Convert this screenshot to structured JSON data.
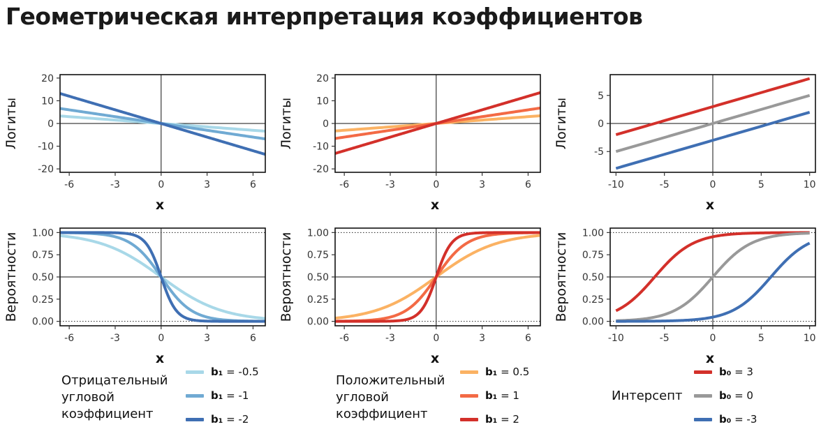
{
  "title": "Геометрическая интерпретация коэффициентов",
  "chart_data": [
    {
      "type": "line",
      "panel": "negative-slope-logits",
      "ylabel": "Логиты",
      "xlabel": "x",
      "xlim": [
        -6.6,
        6.8
      ],
      "ylim": [
        -21.5,
        21.5
      ],
      "xticks": [
        -6,
        -3,
        0,
        3,
        6
      ],
      "xtick_labels": [
        "-6",
        "-3",
        "0",
        "3",
        "6"
      ],
      "yticks": [
        -20,
        -10,
        0,
        10,
        20
      ],
      "ytick_labels": [
        "-20",
        "-10",
        "0",
        "10",
        "20"
      ],
      "kind": "logit",
      "x_range": [
        -6.6,
        6.8
      ],
      "series": [
        {
          "name": "b1 = -0.5",
          "b0": 0,
          "b1": -0.5,
          "color": "#a8d8e8"
        },
        {
          "name": "b1 = -1",
          "b0": 0,
          "b1": -1,
          "color": "#70aad3"
        },
        {
          "name": "b1 = -2",
          "b0": 0,
          "b1": -2,
          "color": "#3f6fb3"
        }
      ]
    },
    {
      "type": "line",
      "panel": "positive-slope-logits",
      "ylabel": "Логиты",
      "xlabel": "x",
      "xlim": [
        -6.6,
        6.8
      ],
      "ylim": [
        -21.5,
        21.5
      ],
      "xticks": [
        -6,
        -3,
        0,
        3,
        6
      ],
      "xtick_labels": [
        "-6",
        "-3",
        "0",
        "3",
        "6"
      ],
      "yticks": [
        -20,
        -10,
        0,
        10,
        20
      ],
      "ytick_labels": [
        "-20",
        "-10",
        "0",
        "10",
        "20"
      ],
      "kind": "logit",
      "x_range": [
        -6.6,
        6.8
      ],
      "series": [
        {
          "name": "b1 = 0.5",
          "b0": 0,
          "b1": 0.5,
          "color": "#fbb263"
        },
        {
          "name": "b1 = 1",
          "b0": 0,
          "b1": 1,
          "color": "#f36a45"
        },
        {
          "name": "b1 = 2",
          "b0": 0,
          "b1": 2,
          "color": "#d3302a"
        }
      ]
    },
    {
      "type": "line",
      "panel": "intercept-logits",
      "ylabel": "Логиты",
      "xlabel": "x",
      "xlim": [
        -10.6,
        10.6
      ],
      "ylim": [
        -8.7,
        8.7
      ],
      "xticks": [
        -10,
        -5,
        0,
        5,
        10
      ],
      "xtick_labels": [
        "-10",
        "-5",
        "0",
        "5",
        "10"
      ],
      "yticks": [
        -5,
        0,
        5
      ],
      "ytick_labels": [
        "-5",
        "0",
        "5"
      ],
      "kind": "logit",
      "x_range": [
        -10,
        10
      ],
      "series": [
        {
          "name": "b0 = 3",
          "b0": 3,
          "b1": 0.5,
          "color": "#d3302a"
        },
        {
          "name": "b0 = 0",
          "b0": 0,
          "b1": 0.5,
          "color": "#999999"
        },
        {
          "name": "b0 = -3",
          "b0": -3,
          "b1": 0.5,
          "color": "#3f6fb3"
        }
      ]
    },
    {
      "type": "line",
      "panel": "negative-slope-probabilities",
      "ylabel": "Вероятности",
      "xlabel": "x",
      "xlim": [
        -6.6,
        6.8
      ],
      "ylim": [
        -0.05,
        1.05
      ],
      "xticks": [
        -6,
        -3,
        0,
        3,
        6
      ],
      "xtick_labels": [
        "-6",
        "-3",
        "0",
        "3",
        "6"
      ],
      "yticks": [
        0,
        0.25,
        0.5,
        0.75,
        1
      ],
      "ytick_labels": [
        "0.00",
        "0.25",
        "0.50",
        "0.75",
        "1.00"
      ],
      "kind": "prob",
      "x_range": [
        -6.6,
        6.8
      ],
      "series": [
        {
          "name": "b1 = -0.5",
          "b0": 0,
          "b1": -0.5,
          "color": "#a8d8e8"
        },
        {
          "name": "b1 = -1",
          "b0": 0,
          "b1": -1,
          "color": "#70aad3"
        },
        {
          "name": "b1 = -2",
          "b0": 0,
          "b1": -2,
          "color": "#3f6fb3"
        }
      ]
    },
    {
      "type": "line",
      "panel": "positive-slope-probabilities",
      "ylabel": "Вероятности",
      "xlabel": "x",
      "xlim": [
        -6.6,
        6.8
      ],
      "ylim": [
        -0.05,
        1.05
      ],
      "xticks": [
        -6,
        -3,
        0,
        3,
        6
      ],
      "xtick_labels": [
        "-6",
        "-3",
        "0",
        "3",
        "6"
      ],
      "yticks": [
        0,
        0.25,
        0.5,
        0.75,
        1
      ],
      "ytick_labels": [
        "0.00",
        "0.25",
        "0.50",
        "0.75",
        "1.00"
      ],
      "kind": "prob",
      "x_range": [
        -6.6,
        6.8
      ],
      "series": [
        {
          "name": "b1 = 0.5",
          "b0": 0,
          "b1": 0.5,
          "color": "#fbb263"
        },
        {
          "name": "b1 = 1",
          "b0": 0,
          "b1": 1,
          "color": "#f36a45"
        },
        {
          "name": "b1 = 2",
          "b0": 0,
          "b1": 2,
          "color": "#d3302a"
        }
      ]
    },
    {
      "type": "line",
      "panel": "intercept-probabilities",
      "ylabel": "Вероятности",
      "xlabel": "x",
      "xlim": [
        -10.6,
        10.6
      ],
      "ylim": [
        -0.05,
        1.05
      ],
      "xticks": [
        -10,
        -5,
        0,
        5,
        10
      ],
      "xtick_labels": [
        "-10",
        "-5",
        "0",
        "5",
        "10"
      ],
      "yticks": [
        0,
        0.25,
        0.5,
        0.75,
        1
      ],
      "ytick_labels": [
        "0.00",
        "0.25",
        "0.50",
        "0.75",
        "1.00"
      ],
      "kind": "prob",
      "x_range": [
        -10,
        10
      ],
      "series": [
        {
          "name": "b0 = 3",
          "b0": 3,
          "b1": 0.5,
          "color": "#d3302a"
        },
        {
          "name": "b0 = 0",
          "b0": 0,
          "b1": 0.5,
          "color": "#999999"
        },
        {
          "name": "b0 = -3",
          "b0": -3,
          "b1": 0.5,
          "color": "#3f6fb3"
        }
      ]
    }
  ],
  "legends": [
    {
      "title_lines": [
        "Отрицательный",
        "угловой",
        "коэффициент"
      ],
      "items": [
        {
          "symbol": "b₁",
          "value": "= -0.5",
          "color": "#a8d8e8"
        },
        {
          "symbol": "b₁",
          "value": "= -1",
          "color": "#70aad3"
        },
        {
          "symbol": "b₁",
          "value": "= -2",
          "color": "#3f6fb3"
        }
      ]
    },
    {
      "title_lines": [
        "Положительный",
        "угловой",
        "коэффициент"
      ],
      "items": [
        {
          "symbol": "b₁",
          "value": "= 0.5",
          "color": "#fbb263"
        },
        {
          "symbol": "b₁",
          "value": "= 1",
          "color": "#f36a45"
        },
        {
          "symbol": "b₁",
          "value": "= 2",
          "color": "#d3302a"
        }
      ]
    },
    {
      "title_lines": [
        "Интерсепт"
      ],
      "items": [
        {
          "symbol": "b₀",
          "value": "= 3",
          "color": "#d3302a"
        },
        {
          "symbol": "b₀",
          "value": "= 0",
          "color": "#999999"
        },
        {
          "symbol": "b₀",
          "value": "= -3",
          "color": "#3f6fb3"
        }
      ]
    }
  ]
}
